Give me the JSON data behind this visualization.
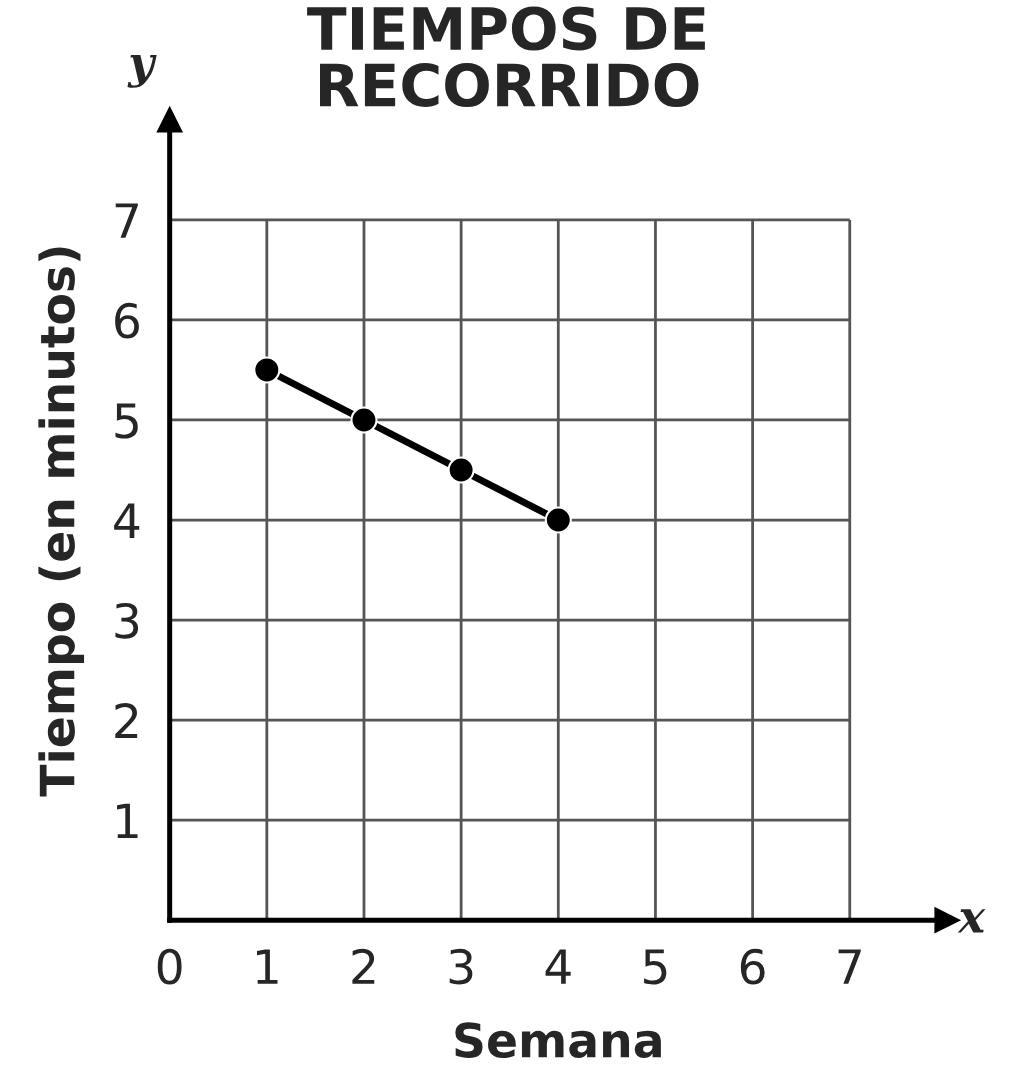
{
  "chart_data": {
    "type": "line",
    "title": "TIEMPOS DE\nRECORRIDO",
    "xlabel": "Semana",
    "ylabel": "Tiempo (en minutos)",
    "annotations": [
      "x",
      "y"
    ],
    "x": [
      1,
      2,
      3,
      4
    ],
    "series": [
      {
        "color": "#000000",
        "values": [
          5.5,
          5,
          4.5,
          4
        ]
      }
    ],
    "xlim": [
      0,
      8
    ],
    "ylim": [
      0,
      8
    ],
    "xticks": [
      0,
      1,
      2,
      3,
      4,
      5,
      6,
      7
    ],
    "yticks": [
      1,
      2,
      3,
      4,
      5,
      6,
      7
    ],
    "grid": true,
    "marker": "circle",
    "line_style": "solid",
    "legend": false
  }
}
